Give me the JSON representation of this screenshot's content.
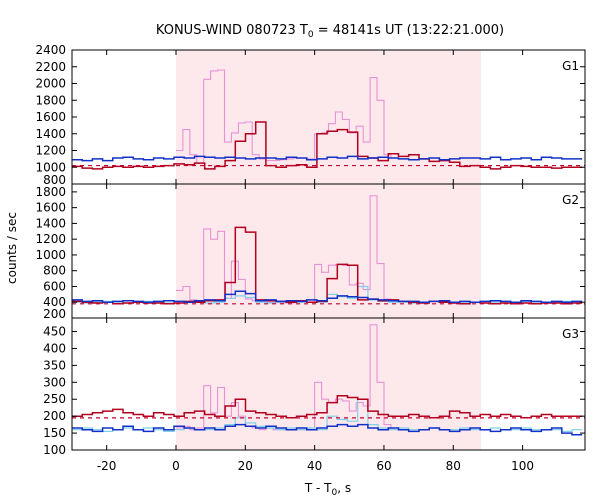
{
  "chart_data": {
    "type": "line",
    "title": "KONUS-WIND 080723 T",
    "title_sub": "0",
    "title_rest": " = 48141s UT (13:22:21.000)",
    "xlabel": "T - T",
    "xlabel_sub": "0",
    "xlabel_rest": ", s",
    "ylabel": "counts / sec",
    "xlim": [
      -30,
      118
    ],
    "x_ticks": [
      -20,
      0,
      20,
      40,
      60,
      80,
      100
    ],
    "highlight_interval": [
      0,
      88
    ],
    "colors": {
      "highlight": "#fde8ec",
      "hires": "#e892d6",
      "red": "#b0001e",
      "blue": "#1030c8",
      "cyan": "#7fd0e8",
      "background_line": "#c80030"
    },
    "panels": [
      {
        "name": "G1",
        "ylim": [
          800,
          2400
        ],
        "y_ticks": [
          800,
          1000,
          1200,
          1400,
          1600,
          1800,
          2000,
          2200,
          2400
        ],
        "background_level": 1020,
        "series": [
          {
            "name": "G1 high-resolution",
            "style": "hires",
            "x_start": 0,
            "bin": 2,
            "values": [
              1200,
              1450,
              1150,
              1050,
              2050,
              2150,
              2160,
              1300,
              1410,
              1530,
              1540,
              1150,
              1100,
              1080,
              1080,
              1090,
              1100,
              1110,
              1110,
              1100,
              1400,
              1410,
              1520,
              1660,
              1570,
              1410,
              1490,
              1300,
              2070,
              1800,
              1150,
              1110
            ]
          },
          {
            "name": "G1 red",
            "style": "red",
            "x_start": -30,
            "bin": 2.944,
            "values": [
              1010,
              990,
              980,
              1000,
              1010,
              1000,
              1010,
              1000,
              1010,
              1020,
              1040,
              1030,
              1050,
              980,
              1010,
              1080,
              1310,
              1400,
              1540,
              1020,
              1000,
              1020,
              1030,
              1000,
              1400,
              1430,
              1450,
              1420,
              1130,
              1110,
              1080,
              1160,
              1130,
              1150,
              1100,
              1070,
              1080,
              1060,
              1010,
              1020,
              1000,
              980,
              1000,
              1020,
              1010,
              1000,
              1000,
              990,
              1000,
              1000
            ]
          },
          {
            "name": "G1 blue",
            "style": "blue",
            "x_start": -30,
            "bin": 2.944,
            "values": [
              1090,
              1080,
              1100,
              1080,
              1110,
              1120,
              1100,
              1090,
              1110,
              1100,
              1120,
              1110,
              1130,
              1120,
              1110,
              1120,
              1110,
              1100,
              1110,
              1110,
              1100,
              1120,
              1110,
              1090,
              1100,
              1120,
              1110,
              1130,
              1100,
              1110,
              1120,
              1110,
              1100,
              1090,
              1100,
              1110,
              1090,
              1100,
              1110,
              1110,
              1100,
              1120,
              1090,
              1100,
              1110,
              1090,
              1120,
              1110,
              1100,
              1100
            ]
          }
        ]
      },
      {
        "name": "G2",
        "ylim": [
          200,
          1900
        ],
        "y_ticks": [
          200,
          400,
          600,
          800,
          1000,
          1200,
          1400,
          1600,
          1800
        ],
        "background_level": 380,
        "series": [
          {
            "name": "G2 high-resolution",
            "style": "hires",
            "x_start": 0,
            "bin": 2,
            "values": [
              550,
              600,
              430,
              420,
              1330,
              1200,
              1300,
              450,
              920,
              690,
              440,
              420,
              410,
              400,
              400,
              390,
              390,
              400,
              400,
              400,
              880,
              780,
              870,
              880,
              870,
              620,
              640,
              560,
              1750,
              890,
              440,
              410
            ]
          },
          {
            "name": "G2 red",
            "style": "red",
            "x_start": -30,
            "bin": 2.944,
            "values": [
              410,
              400,
              390,
              400,
              380,
              390,
              400,
              390,
              390,
              380,
              390,
              410,
              400,
              420,
              430,
              650,
              1350,
              1290,
              430,
              420,
              410,
              400,
              420,
              400,
              410,
              700,
              880,
              870,
              430,
              440,
              420,
              430,
              410,
              400,
              390,
              410,
              400,
              390,
              380,
              400,
              390,
              380,
              390,
              380,
              390,
              380,
              390,
              390,
              380,
              390
            ]
          },
          {
            "name": "G2 blue",
            "style": "blue",
            "x_start": -30,
            "bin": 2.944,
            "values": [
              430,
              410,
              420,
              400,
              410,
              420,
              410,
              400,
              410,
              420,
              410,
              400,
              420,
              430,
              420,
              500,
              540,
              510,
              420,
              430,
              410,
              420,
              410,
              430,
              420,
              450,
              480,
              470,
              460,
              440,
              430,
              420,
              410,
              410,
              400,
              410,
              420,
              400,
              410,
              400,
              410,
              420,
              410,
              400,
              420,
              410,
              400,
              410,
              400,
              410
            ]
          },
          {
            "name": "G2 cyan",
            "style": "cyan",
            "x_start": -30,
            "bin": 2.944,
            "values": [
              400,
              390,
              400,
              410,
              400,
              390,
              400,
              410,
              400,
              390,
              410,
              400,
              400,
              390,
              400,
              450,
              480,
              460,
              400,
              390,
              400,
              410,
              400,
              400,
              400,
              500,
              470,
              450,
              600,
              430,
              410,
              400,
              400,
              390,
              400,
              410,
              400,
              390,
              400,
              400,
              410,
              400,
              390,
              400,
              410,
              400,
              390,
              400,
              410,
              400
            ]
          }
        ]
      },
      {
        "name": "G3",
        "ylim": [
          100,
          490
        ],
        "y_ticks": [
          100,
          150,
          200,
          250,
          300,
          350,
          400,
          450
        ],
        "background_level": 195,
        "series": [
          {
            "name": "G3 high-resolution",
            "style": "hires",
            "x_start": 0,
            "bin": 2,
            "values": [
              165,
              170,
              160,
              165,
              290,
              210,
              285,
              200,
              240,
              200,
              170,
              165,
              160,
              165,
              160,
              160,
              165,
              160,
              160,
              165,
              300,
              250,
              240,
              250,
              245,
              215,
              240,
              230,
              470,
              300,
              175,
              165
            ]
          },
          {
            "name": "G3 red",
            "style": "red",
            "x_start": -30,
            "bin": 2.944,
            "values": [
              200,
              205,
              210,
              215,
              220,
              210,
              205,
              200,
              210,
              205,
              200,
              210,
              215,
              205,
              200,
              230,
              250,
              215,
              210,
              205,
              200,
              195,
              200,
              205,
              210,
              240,
              260,
              255,
              250,
              215,
              205,
              200,
              200,
              205,
              200,
              195,
              200,
              215,
              210,
              200,
              205,
              200,
              205,
              200,
              195,
              200,
              205,
              200,
              200,
              200
            ]
          },
          {
            "name": "G3 blue",
            "style": "blue",
            "x_start": -30,
            "bin": 2.944,
            "values": [
              165,
              160,
              155,
              165,
              160,
              170,
              160,
              155,
              165,
              160,
              170,
              165,
              160,
              165,
              160,
              170,
              175,
              170,
              165,
              170,
              165,
              160,
              165,
              160,
              165,
              170,
              175,
              170,
              175,
              165,
              160,
              165,
              160,
              155,
              160,
              165,
              160,
              155,
              160,
              165,
              160,
              155,
              160,
              165,
              160,
              155,
              160,
              165,
              150,
              145
            ]
          },
          {
            "name": "G3 cyan",
            "style": "cyan",
            "x_start": -30,
            "bin": 2.944,
            "values": [
              160,
              165,
              160,
              155,
              160,
              165,
              160,
              165,
              160,
              155,
              160,
              165,
              160,
              160,
              165,
              175,
              195,
              180,
              170,
              165,
              160,
              165,
              160,
              165,
              160,
              200,
              190,
              185,
              250,
              175,
              165,
              160,
              165,
              160,
              160,
              165,
              160,
              160,
              165,
              160,
              160,
              165,
              160,
              160,
              165,
              160,
              160,
              160,
              155,
              160
            ]
          }
        ]
      }
    ]
  }
}
